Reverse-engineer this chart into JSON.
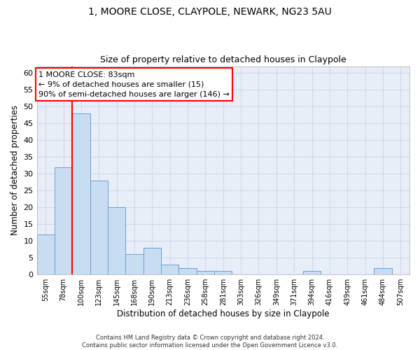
{
  "title1": "1, MOORE CLOSE, CLAYPOLE, NEWARK, NG23 5AU",
  "title2": "Size of property relative to detached houses in Claypole",
  "xlabel": "Distribution of detached houses by size in Claypole",
  "ylabel": "Number of detached properties",
  "categories": [
    "55sqm",
    "78sqm",
    "100sqm",
    "123sqm",
    "145sqm",
    "168sqm",
    "190sqm",
    "213sqm",
    "236sqm",
    "258sqm",
    "281sqm",
    "303sqm",
    "326sqm",
    "349sqm",
    "371sqm",
    "394sqm",
    "416sqm",
    "439sqm",
    "461sqm",
    "484sqm",
    "507sqm"
  ],
  "values": [
    12,
    32,
    48,
    28,
    20,
    6,
    8,
    3,
    2,
    1,
    1,
    0,
    0,
    0,
    0,
    1,
    0,
    0,
    0,
    2,
    0
  ],
  "bar_color": "#c9ddf2",
  "bar_edge_color": "#6a9fd8",
  "grid_color": "#d0d9ea",
  "background_color": "#e8eef8",
  "annotation_text": "1 MOORE CLOSE: 83sqm\n← 9% of detached houses are smaller (15)\n90% of semi-detached houses are larger (146) →",
  "ylim": [
    0,
    62
  ],
  "yticks": [
    0,
    5,
    10,
    15,
    20,
    25,
    30,
    35,
    40,
    45,
    50,
    55,
    60
  ],
  "footer": "Contains HM Land Registry data © Crown copyright and database right 2024.\nContains public sector information licensed under the Open Government Licence v3.0.",
  "title1_fontsize": 10,
  "title2_fontsize": 9,
  "xlabel_fontsize": 8.5,
  "ylabel_fontsize": 8.5,
  "red_line_index": 1.5
}
